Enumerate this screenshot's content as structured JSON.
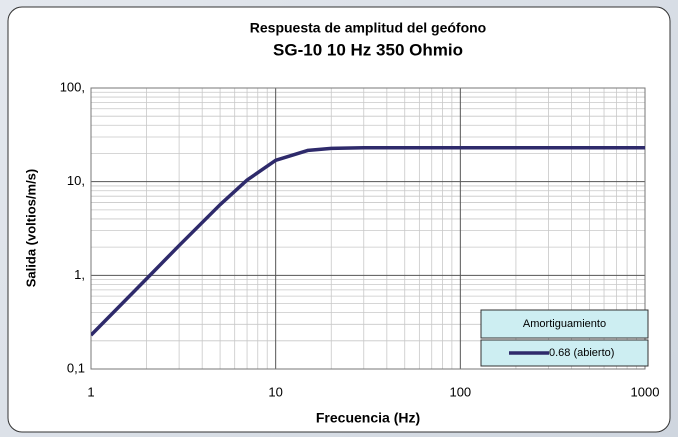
{
  "chart_data": {
    "type": "line",
    "title": "Respuesta de amplitud del geófono",
    "subtitle": "SG-10  10 Hz  350 Ohmio",
    "xlabel": "Frecuencia (Hz)",
    "ylabel": "Salida (voltios/m/s)",
    "x": [
      1,
      2,
      3,
      5,
      7,
      10,
      15,
      20,
      30,
      50,
      100,
      200,
      500,
      1000
    ],
    "series": [
      {
        "name": "0.68 (abierto)",
        "color": "#2e2a6b",
        "values": [
          0.23,
          0.92,
          2.08,
          5.68,
          10.4,
          16.9,
          21.6,
          22.7,
          23.0,
          23.0,
          23.0,
          23.0,
          23.0,
          23.0
        ]
      }
    ],
    "legend_title": "Amortiguamiento",
    "legend": "bottom-right",
    "xlim": [
      1,
      1000
    ],
    "xticks": [
      1,
      10,
      100,
      1000
    ],
    "ylim": [
      0.1,
      100
    ],
    "yticks": [
      {
        "value": 0.1,
        "label": "0,1"
      },
      {
        "value": 1,
        "label": "1,"
      },
      {
        "value": 10,
        "label": "10,"
      },
      {
        "value": 100,
        "label": "100,"
      }
    ],
    "xscale": "log",
    "yscale": "log",
    "grid": true,
    "minor_grid": true
  }
}
